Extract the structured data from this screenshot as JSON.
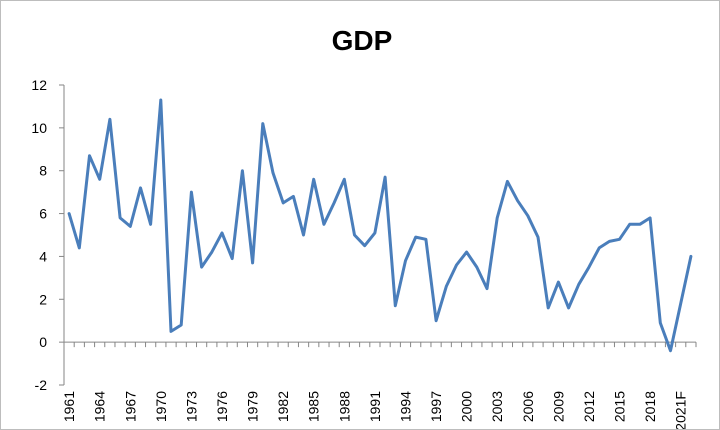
{
  "chart_data": {
    "type": "line",
    "title": "GDP",
    "xlabel": "",
    "ylabel": "",
    "ylim": [
      -2,
      12
    ],
    "yticks": [
      "-2",
      "0",
      "2",
      "4",
      "6",
      "8",
      "10",
      "12"
    ],
    "grid": false,
    "legend": "none",
    "x_tick_labels": [
      "1961",
      "1964",
      "1967",
      "1970",
      "1973",
      "1976",
      "1979",
      "1982",
      "1985",
      "1988",
      "1991",
      "1994",
      "1997",
      "2000",
      "2003",
      "2006",
      "2009",
      "2012",
      "2015",
      "2018",
      "2021F"
    ],
    "x": [
      "1961",
      "1962",
      "1963",
      "1964",
      "1965",
      "1966",
      "1967",
      "1968",
      "1969",
      "1970",
      "1971",
      "1972",
      "1973",
      "1974",
      "1975",
      "1976",
      "1977",
      "1978",
      "1979",
      "1980",
      "1981",
      "1982",
      "1983",
      "1984",
      "1985",
      "1986",
      "1987",
      "1988",
      "1989",
      "1990",
      "1991",
      "1992",
      "1993",
      "1994",
      "1995",
      "1996",
      "1997",
      "1998",
      "1999",
      "2000",
      "2001",
      "2002",
      "2003",
      "2004",
      "2005",
      "2006",
      "2007",
      "2008",
      "2009",
      "2010",
      "2011",
      "2012",
      "2013",
      "2014",
      "2015",
      "2016",
      "2017",
      "2018",
      "2019",
      "2020",
      "2021F",
      "2022F"
    ],
    "series": [
      {
        "values": [
          6.0,
          4.4,
          8.7,
          7.6,
          10.4,
          5.8,
          5.4,
          7.2,
          5.5,
          11.3,
          0.5,
          0.8,
          7.0,
          3.5,
          4.2,
          5.1,
          3.9,
          8.0,
          3.7,
          10.2,
          7.9,
          6.5,
          6.8,
          5.0,
          7.6,
          5.5,
          6.5,
          7.6,
          5.0,
          4.5,
          5.1,
          7.7,
          1.7,
          3.8,
          4.9,
          4.8,
          1.0,
          2.6,
          3.6,
          4.2,
          3.5,
          2.5,
          5.8,
          7.5,
          6.6,
          5.9,
          4.9,
          1.6,
          2.8,
          1.6,
          2.7,
          3.5,
          4.4,
          4.7,
          4.8,
          5.5,
          5.5,
          5.8,
          0.9,
          -0.4,
          1.8,
          4.0
        ],
        "color": "#4a7ebb"
      }
    ]
  }
}
